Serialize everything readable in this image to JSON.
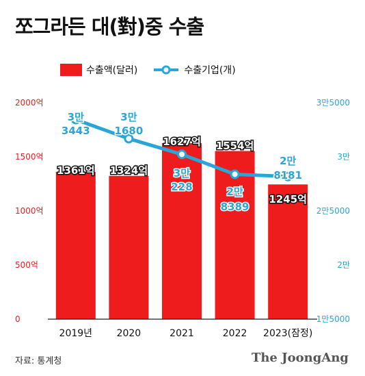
{
  "title": "쪼그라든 대(對)중 수출",
  "legend": {
    "bar_label": "수출액(달러)",
    "line_label": "수출기업(개)"
  },
  "source": "자료: 통계청",
  "brand": "The JoongAng",
  "colors": {
    "bar": "#ee1c1c",
    "line": "#29a6d8",
    "left_axis": "#ee1c1c",
    "right_axis": "#29a6d8"
  },
  "chart_data": {
    "type": "bar+line",
    "categories": [
      "2019년",
      "2020",
      "2021",
      "2022",
      "2023(잠정)"
    ],
    "bar_series": {
      "name": "수출액(달러)",
      "values": [
        1361,
        1324,
        1627,
        1554,
        1245
      ],
      "labels": [
        "1361억",
        "1324억",
        "1627억",
        "1554억",
        "1245억"
      ]
    },
    "line_series": {
      "name": "수출기업(개)",
      "values": [
        33443,
        31680,
        30228,
        28389,
        28181
      ],
      "labels": [
        [
          "3만",
          "3443"
        ],
        [
          "3만",
          "1680"
        ],
        [
          "3만",
          "228"
        ],
        [
          "2만",
          "8389"
        ],
        [
          "2만",
          "8181"
        ]
      ]
    },
    "left_axis": {
      "ylim": [
        0,
        2000
      ],
      "ticks": [
        0,
        500,
        1000,
        1500,
        2000
      ],
      "tick_labels": [
        "0",
        "500억",
        "1000억",
        "1500억",
        "2000억"
      ]
    },
    "right_axis": {
      "ylim": [
        15000,
        35000
      ],
      "ticks": [
        15000,
        20000,
        25000,
        30000,
        35000
      ],
      "tick_labels": [
        "1만5000",
        "2만",
        "2만5000",
        "3만",
        "3만5000"
      ]
    },
    "grid": false
  }
}
